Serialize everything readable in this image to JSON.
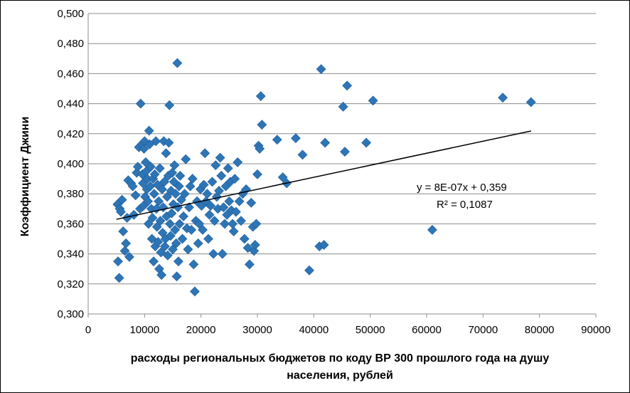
{
  "chart_data": {
    "type": "scatter",
    "title": "",
    "xlabel_lines": [
      "расходы региональных бюджетов по коду ВР 300 прошлого года на душу",
      "населения, рублей"
    ],
    "ylabel": "Коэффициент Джини",
    "xlim": [
      0,
      90000
    ],
    "ylim": [
      0.3,
      0.5
    ],
    "x_ticks": [
      0,
      10000,
      20000,
      30000,
      40000,
      50000,
      60000,
      70000,
      80000,
      90000
    ],
    "x_tick_labels": [
      "0",
      "10000",
      "20000",
      "30000",
      "40000",
      "50000",
      "60000",
      "70000",
      "80000",
      "90000"
    ],
    "y_ticks": [
      0.3,
      0.32,
      0.34,
      0.36,
      0.38,
      0.4,
      0.42,
      0.44,
      0.46,
      0.48,
      0.5
    ],
    "y_tick_labels": [
      "0,300",
      "0,320",
      "0,340",
      "0,360",
      "0,380",
      "0,400",
      "0,420",
      "0,440",
      "0,460",
      "0,480",
      "0,500"
    ],
    "grid": "horizontal",
    "legend": "none",
    "marker_color": "#2E75B6",
    "marker_edge_color": "#1F5F9A",
    "trendline_color": "#000000",
    "trendline": {
      "x_range": [
        5000,
        78500
      ],
      "equation": "y = 8E-07x + 0,359",
      "r2": "R² = 0,1087"
    },
    "points": [
      [
        5200,
        0.373
      ],
      [
        5300,
        0.335
      ],
      [
        5500,
        0.324
      ],
      [
        5600,
        0.37
      ],
      [
        5800,
        0.368
      ],
      [
        6000,
        0.376
      ],
      [
        6200,
        0.355
      ],
      [
        6500,
        0.342
      ],
      [
        6700,
        0.347
      ],
      [
        6900,
        0.364
      ],
      [
        7100,
        0.389
      ],
      [
        7300,
        0.338
      ],
      [
        7600,
        0.387
      ],
      [
        7900,
        0.385
      ],
      [
        8100,
        0.366
      ],
      [
        8400,
        0.379
      ],
      [
        8600,
        0.394
      ],
      [
        8800,
        0.398
      ],
      [
        9000,
        0.411
      ],
      [
        9200,
        0.37
      ],
      [
        9300,
        0.44
      ],
      [
        9500,
        0.413
      ],
      [
        9600,
        0.393
      ],
      [
        9700,
        0.387
      ],
      [
        9800,
        0.372
      ],
      [
        9900,
        0.41
      ],
      [
        10000,
        0.415
      ],
      [
        10100,
        0.378
      ],
      [
        10200,
        0.401
      ],
      [
        10300,
        0.395
      ],
      [
        10400,
        0.383
      ],
      [
        10500,
        0.39
      ],
      [
        10600,
        0.375
      ],
      [
        10700,
        0.36
      ],
      [
        10800,
        0.422
      ],
      [
        10900,
        0.413
      ],
      [
        11000,
        0.385
      ],
      [
        11100,
        0.398
      ],
      [
        11200,
        0.37
      ],
      [
        11300,
        0.35
      ],
      [
        11400,
        0.364
      ],
      [
        11500,
        0.39
      ],
      [
        11600,
        0.335
      ],
      [
        11700,
        0.38
      ],
      [
        11800,
        0.393
      ],
      [
        11900,
        0.345
      ],
      [
        12000,
        0.415
      ],
      [
        12100,
        0.37
      ],
      [
        12200,
        0.358
      ],
      [
        12300,
        0.386
      ],
      [
        12400,
        0.348
      ],
      [
        12500,
        0.375
      ],
      [
        12600,
        0.33
      ],
      [
        12700,
        0.397
      ],
      [
        12800,
        0.362
      ],
      [
        12900,
        0.341
      ],
      [
        13000,
        0.326
      ],
      [
        13100,
        0.383
      ],
      [
        13200,
        0.354
      ],
      [
        13300,
        0.371
      ],
      [
        13400,
        0.415
      ],
      [
        13500,
        0.388
      ],
      [
        13600,
        0.345
      ],
      [
        13700,
        0.35
      ],
      [
        13800,
        0.407
      ],
      [
        13900,
        0.365
      ],
      [
        14000,
        0.378
      ],
      [
        14100,
        0.339
      ],
      [
        14200,
        0.392
      ],
      [
        14300,
        0.414
      ],
      [
        14400,
        0.439
      ],
      [
        14500,
        0.36
      ],
      [
        14600,
        0.352
      ],
      [
        14700,
        0.382
      ],
      [
        14800,
        0.367
      ],
      [
        14900,
        0.394
      ],
      [
        15000,
        0.343
      ],
      [
        15100,
        0.373
      ],
      [
        15200,
        0.388
      ],
      [
        15300,
        0.399
      ],
      [
        15400,
        0.356
      ],
      [
        15500,
        0.38
      ],
      [
        15600,
        0.347
      ],
      [
        15700,
        0.325
      ],
      [
        15800,
        0.467
      ],
      [
        15900,
        0.371
      ],
      [
        16000,
        0.335
      ],
      [
        16100,
        0.385
      ],
      [
        16200,
        0.36
      ],
      [
        16300,
        0.392
      ],
      [
        16500,
        0.376
      ],
      [
        16700,
        0.35
      ],
      [
        16900,
        0.365
      ],
      [
        17100,
        0.38
      ],
      [
        17300,
        0.403
      ],
      [
        17500,
        0.357
      ],
      [
        17700,
        0.343
      ],
      [
        17900,
        0.371
      ],
      [
        18100,
        0.385
      ],
      [
        18300,
        0.356
      ],
      [
        18500,
        0.39
      ],
      [
        18700,
        0.333
      ],
      [
        18900,
        0.315
      ],
      [
        19100,
        0.362
      ],
      [
        19300,
        0.375
      ],
      [
        19500,
        0.347
      ],
      [
        19700,
        0.36
      ],
      [
        19900,
        0.383
      ],
      [
        20100,
        0.372
      ],
      [
        20300,
        0.356
      ],
      [
        20500,
        0.386
      ],
      [
        20700,
        0.407
      ],
      [
        20900,
        0.375
      ],
      [
        21100,
        0.38
      ],
      [
        21300,
        0.35
      ],
      [
        21500,
        0.366
      ],
      [
        21700,
        0.372
      ],
      [
        22000,
        0.388
      ],
      [
        22200,
        0.34
      ],
      [
        22400,
        0.362
      ],
      [
        22600,
        0.399
      ],
      [
        22800,
        0.378
      ],
      [
        23000,
        0.37
      ],
      [
        23200,
        0.382
      ],
      [
        23400,
        0.404
      ],
      [
        23600,
        0.392
      ],
      [
        23800,
        0.34
      ],
      [
        24000,
        0.371
      ],
      [
        24200,
        0.36
      ],
      [
        24400,
        0.385
      ],
      [
        24600,
        0.366
      ],
      [
        24800,
        0.397
      ],
      [
        25000,
        0.375
      ],
      [
        25200,
        0.388
      ],
      [
        25400,
        0.369
      ],
      [
        25600,
        0.36
      ],
      [
        25800,
        0.355
      ],
      [
        26000,
        0.39
      ],
      [
        26200,
        0.368
      ],
      [
        26500,
        0.401
      ],
      [
        26800,
        0.375
      ],
      [
        27100,
        0.362
      ],
      [
        27400,
        0.38
      ],
      [
        27700,
        0.35
      ],
      [
        28000,
        0.383
      ],
      [
        28300,
        0.344
      ],
      [
        28600,
        0.333
      ],
      [
        28900,
        0.374
      ],
      [
        29200,
        0.358
      ],
      [
        29400,
        0.342
      ],
      [
        29600,
        0.346
      ],
      [
        29800,
        0.36
      ],
      [
        30000,
        0.393
      ],
      [
        30200,
        0.412
      ],
      [
        30400,
        0.41
      ],
      [
        30600,
        0.445
      ],
      [
        30800,
        0.426
      ],
      [
        33500,
        0.416
      ],
      [
        34500,
        0.391
      ],
      [
        35200,
        0.387
      ],
      [
        36800,
        0.417
      ],
      [
        38000,
        0.406
      ],
      [
        39200,
        0.329
      ],
      [
        41000,
        0.345
      ],
      [
        41300,
        0.463
      ],
      [
        41800,
        0.346
      ],
      [
        42000,
        0.414
      ],
      [
        45200,
        0.438
      ],
      [
        45500,
        0.408
      ],
      [
        45900,
        0.452
      ],
      [
        49300,
        0.414
      ],
      [
        50500,
        0.442
      ],
      [
        61000,
        0.356
      ],
      [
        73500,
        0.444
      ],
      [
        78500,
        0.441
      ]
    ]
  }
}
